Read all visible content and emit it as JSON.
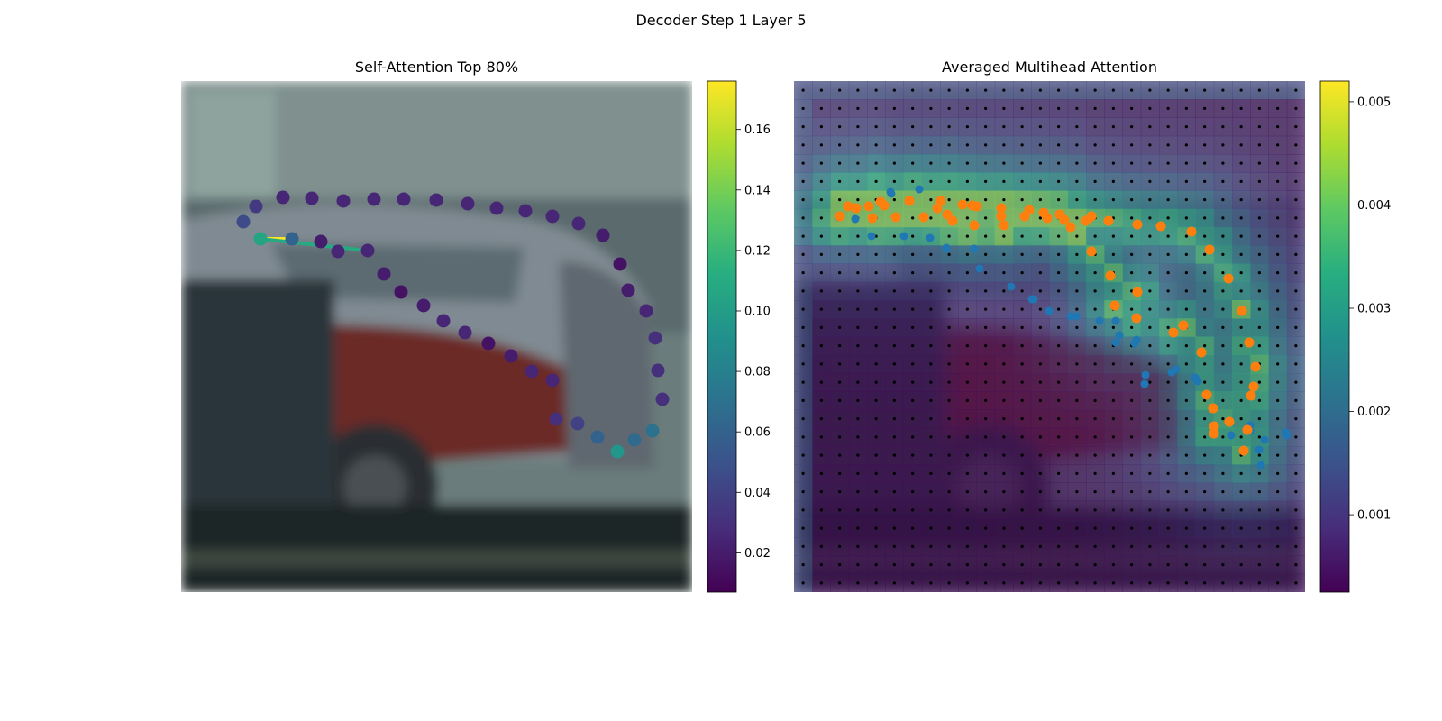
{
  "figure": {
    "title": "Decoder Step 1 Layer 5"
  },
  "chart_data": [
    {
      "type": "scatter",
      "title": "Self-Attention Top 80%",
      "background": "blurred photo of parked cars (grey wall, silver car, dark red car)",
      "colormap": "viridis",
      "colorbar": {
        "range": [
          0.007,
          0.176
        ],
        "ticks": [
          0.02,
          0.04,
          0.06,
          0.08,
          0.1,
          0.12,
          0.14,
          0.16
        ],
        "tick_labels": [
          "0.02",
          "0.04",
          "0.06",
          "0.08",
          "0.10",
          "0.12",
          "0.14",
          "0.16"
        ]
      },
      "attention_lines": [
        {
          "from_point": 1,
          "to_point": 2,
          "weight": 0.176
        },
        {
          "from_point": 1,
          "to_point": 5,
          "weight": 0.11
        }
      ],
      "points": [
        {
          "x": 69,
          "y": 156,
          "value": 0.045
        },
        {
          "x": 88,
          "y": 175,
          "value": 0.105
        },
        {
          "x": 123,
          "y": 175,
          "value": 0.06
        },
        {
          "x": 155,
          "y": 178,
          "value": 0.02
        },
        {
          "x": 174,
          "y": 189,
          "value": 0.025
        },
        {
          "x": 207,
          "y": 188,
          "value": 0.025
        },
        {
          "x": 225,
          "y": 214,
          "value": 0.02
        },
        {
          "x": 244,
          "y": 234,
          "value": 0.015
        },
        {
          "x": 269,
          "y": 249,
          "value": 0.02
        },
        {
          "x": 291,
          "y": 266,
          "value": 0.025
        },
        {
          "x": 315,
          "y": 279,
          "value": 0.025
        },
        {
          "x": 341,
          "y": 291,
          "value": 0.015
        },
        {
          "x": 366,
          "y": 305,
          "value": 0.02
        },
        {
          "x": 389,
          "y": 322,
          "value": 0.025
        },
        {
          "x": 412,
          "y": 332,
          "value": 0.025
        },
        {
          "x": 416,
          "y": 375,
          "value": 0.03
        },
        {
          "x": 440,
          "y": 380,
          "value": 0.04
        },
        {
          "x": 462,
          "y": 395,
          "value": 0.06
        },
        {
          "x": 484,
          "y": 411,
          "value": 0.095
        },
        {
          "x": 503,
          "y": 398,
          "value": 0.065
        },
        {
          "x": 523,
          "y": 388,
          "value": 0.07
        },
        {
          "x": 534,
          "y": 353,
          "value": 0.03
        },
        {
          "x": 529,
          "y": 321,
          "value": 0.03
        },
        {
          "x": 526,
          "y": 285,
          "value": 0.03
        },
        {
          "x": 516,
          "y": 255,
          "value": 0.025
        },
        {
          "x": 496,
          "y": 232,
          "value": 0.02
        },
        {
          "x": 487,
          "y": 203,
          "value": 0.015
        },
        {
          "x": 468,
          "y": 171,
          "value": 0.02
        },
        {
          "x": 441,
          "y": 158,
          "value": 0.025
        },
        {
          "x": 412,
          "y": 150,
          "value": 0.025
        },
        {
          "x": 382,
          "y": 144,
          "value": 0.025
        },
        {
          "x": 350,
          "y": 141,
          "value": 0.025
        },
        {
          "x": 318,
          "y": 136,
          "value": 0.025
        },
        {
          "x": 283,
          "y": 132,
          "value": 0.025
        },
        {
          "x": 247,
          "y": 131,
          "value": 0.025
        },
        {
          "x": 214,
          "y": 131,
          "value": 0.025
        },
        {
          "x": 180,
          "y": 133,
          "value": 0.025
        },
        {
          "x": 145,
          "y": 130,
          "value": 0.025
        },
        {
          "x": 113,
          "y": 129,
          "value": 0.025
        },
        {
          "x": 83,
          "y": 139,
          "value": 0.035
        }
      ]
    },
    {
      "type": "heatmap",
      "title": "Averaged Multihead Attention",
      "background": "blurred photo of parked cars",
      "colormap": "viridis",
      "grid": {
        "rows": 28,
        "cols": 28
      },
      "colorbar": {
        "range": [
          0.00025,
          0.0052
        ],
        "ticks": [
          0.001,
          0.002,
          0.003,
          0.004,
          0.005
        ],
        "tick_labels": [
          "0.001",
          "0.002",
          "0.003",
          "0.004",
          "0.005"
        ]
      },
      "series": [
        {
          "color": "#1f77b4",
          "points": [
            [
              50,
              151
            ],
            [
              68,
              153
            ],
            [
              86,
              172
            ],
            [
              107,
              123
            ],
            [
              108,
              125
            ],
            [
              122,
              172
            ],
            [
              139,
              120
            ],
            [
              151,
              174
            ],
            [
              169,
              185
            ],
            [
              169,
              186
            ],
            [
              200,
              186
            ],
            [
              206,
              208
            ],
            [
              241,
              228
            ],
            [
              264,
              242
            ],
            [
              266,
              242
            ],
            [
              283,
              255
            ],
            [
              307,
              261
            ],
            [
              313,
              261
            ],
            [
              339,
              266
            ],
            [
              357,
              266
            ],
            [
              361,
              282
            ],
            [
              357,
              290
            ],
            [
              378,
              291
            ],
            [
              380,
              287
            ],
            [
              389,
              336
            ],
            [
              390,
              326
            ],
            [
              419,
              323
            ],
            [
              424,
              320
            ],
            [
              445,
              329
            ],
            [
              448,
              333
            ],
            [
              485,
              393
            ],
            [
              506,
              388
            ],
            [
              506,
              382
            ],
            [
              516,
              409
            ],
            [
              522,
              398
            ],
            [
              547,
              393
            ],
            [
              518,
              426
            ],
            [
              546,
              390
            ]
          ]
        },
        {
          "color": "#ff7f0e",
          "points": [
            [
              51,
              150
            ],
            [
              60,
              139
            ],
            [
              87,
              152
            ],
            [
              96,
              134
            ],
            [
              113,
              151
            ],
            [
              128,
              133
            ],
            [
              144,
              151
            ],
            [
              159,
              141
            ],
            [
              170,
              148
            ],
            [
              176,
              155
            ],
            [
              198,
              138
            ],
            [
              200,
              160
            ],
            [
              230,
              150
            ],
            [
              233,
              160
            ],
            [
              261,
              143
            ],
            [
              277,
              146
            ],
            [
              295,
              148
            ],
            [
              307,
              162
            ],
            [
              330,
              150
            ],
            [
              330,
              189
            ],
            [
              351,
              216
            ],
            [
              356,
              249
            ],
            [
              381,
              234
            ],
            [
              380,
              263
            ],
            [
              421,
              279
            ],
            [
              432,
              271
            ],
            [
              452,
              301
            ],
            [
              458,
              348
            ],
            [
              465,
              363
            ],
            [
              466,
              383
            ],
            [
              466,
              391
            ],
            [
              483,
              378
            ],
            [
              499,
              410
            ],
            [
              503,
              387
            ],
            [
              507,
              349
            ],
            [
              510,
              339
            ],
            [
              512,
              317
            ],
            [
              505,
              290
            ],
            [
              497,
              255
            ],
            [
              482,
              219
            ],
            [
              461,
              187
            ],
            [
              441,
              167
            ],
            [
              407,
              161
            ],
            [
              381,
              159
            ],
            [
              349,
              155
            ],
            [
              324,
              155
            ],
            [
              300,
              154
            ],
            [
              281,
              152
            ],
            [
              256,
              150
            ],
            [
              230,
              141
            ],
            [
              203,
              139
            ],
            [
              187,
              137
            ],
            [
              163,
              133
            ],
            [
              128,
              133
            ],
            [
              100,
              138
            ],
            [
              83,
              139
            ],
            [
              69,
              141
            ]
          ]
        }
      ]
    }
  ]
}
